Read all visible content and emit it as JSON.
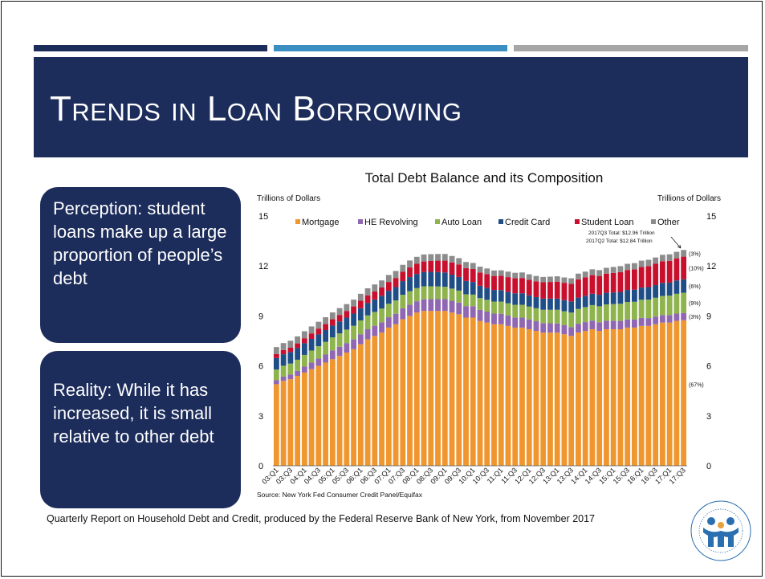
{
  "slide": {
    "title": "Trends in Loan Borrowing",
    "perception_text": "Perception: student loans make up a large proportion of people’s debt",
    "reality_text": "Reality: While it has increased, it is small relative to other debt",
    "footer": "Quarterly Report on Household Debt and Credit, produced by the Federal Reserve Bank of New York, from November 2017"
  },
  "colors": {
    "navy": "#1c2c5b",
    "blue": "#3b8ec2",
    "gray": "#a6a6a6"
  },
  "logo_icon": "financial-aid-association-seal-icon",
  "chart_data": {
    "type": "bar",
    "stacked": true,
    "title": "Total Debt Balance and its Composition",
    "ylabel_left": "Trillions of Dollars",
    "ylabel_right": "Trillions of Dollars",
    "ylim": [
      0,
      15
    ],
    "yticks": [
      0,
      3,
      6,
      9,
      12,
      15
    ],
    "source": "Source: New York Fed Consumer Credit Panel/Equifax",
    "legend_position": "top",
    "tick_labels": [
      "03:Q1",
      "03:Q3",
      "04:Q1",
      "04:Q3",
      "05:Q1",
      "05:Q3",
      "06:Q1",
      "06:Q3",
      "07:Q1",
      "07:Q3",
      "08:Q1",
      "08:Q3",
      "09:Q1",
      "09:Q3",
      "10:Q1",
      "10:Q3",
      "11:Q1",
      "11:Q3",
      "12:Q1",
      "12:Q3",
      "13:Q1",
      "13:Q3",
      "14:Q1",
      "14:Q3",
      "15:Q1",
      "15:Q3",
      "16:Q1",
      "16:Q3",
      "17:Q1",
      "17:Q3"
    ],
    "categories": [
      "03:Q1",
      "03:Q2",
      "03:Q3",
      "03:Q4",
      "04:Q1",
      "04:Q2",
      "04:Q3",
      "04:Q4",
      "05:Q1",
      "05:Q2",
      "05:Q3",
      "05:Q4",
      "06:Q1",
      "06:Q2",
      "06:Q3",
      "06:Q4",
      "07:Q1",
      "07:Q2",
      "07:Q3",
      "07:Q4",
      "08:Q1",
      "08:Q2",
      "08:Q3",
      "08:Q4",
      "09:Q1",
      "09:Q2",
      "09:Q3",
      "09:Q4",
      "10:Q1",
      "10:Q2",
      "10:Q3",
      "10:Q4",
      "11:Q1",
      "11:Q2",
      "11:Q3",
      "11:Q4",
      "12:Q1",
      "12:Q2",
      "12:Q3",
      "12:Q4",
      "13:Q1",
      "13:Q2",
      "13:Q3",
      "13:Q4",
      "14:Q1",
      "14:Q2",
      "14:Q3",
      "14:Q4",
      "15:Q1",
      "15:Q2",
      "15:Q3",
      "15:Q4",
      "16:Q1",
      "16:Q2",
      "16:Q3",
      "16:Q4",
      "17:Q1",
      "17:Q2",
      "17:Q3"
    ],
    "series": [
      {
        "name": "Mortgage",
        "color": "#f0962e",
        "values": [
          4.9,
          5.1,
          5.2,
          5.4,
          5.6,
          5.8,
          6.0,
          6.2,
          6.4,
          6.6,
          6.8,
          7.0,
          7.3,
          7.6,
          7.8,
          8.0,
          8.3,
          8.5,
          8.8,
          9.0,
          9.2,
          9.3,
          9.3,
          9.3,
          9.3,
          9.2,
          9.1,
          8.9,
          8.9,
          8.7,
          8.6,
          8.5,
          8.5,
          8.4,
          8.3,
          8.3,
          8.2,
          8.1,
          8.0,
          8.0,
          8.0,
          7.9,
          7.8,
          8.0,
          8.1,
          8.2,
          8.1,
          8.2,
          8.2,
          8.2,
          8.3,
          8.3,
          8.4,
          8.4,
          8.5,
          8.6,
          8.6,
          8.7,
          8.74
        ]
      },
      {
        "name": "HE Revolving",
        "color": "#8f67b2",
        "values": [
          0.24,
          0.26,
          0.28,
          0.3,
          0.36,
          0.4,
          0.44,
          0.48,
          0.53,
          0.55,
          0.57,
          0.59,
          0.6,
          0.6,
          0.61,
          0.62,
          0.62,
          0.63,
          0.66,
          0.68,
          0.68,
          0.7,
          0.71,
          0.71,
          0.71,
          0.71,
          0.7,
          0.69,
          0.68,
          0.67,
          0.66,
          0.64,
          0.63,
          0.62,
          0.61,
          0.6,
          0.59,
          0.58,
          0.57,
          0.56,
          0.55,
          0.54,
          0.53,
          0.53,
          0.53,
          0.52,
          0.52,
          0.51,
          0.51,
          0.5,
          0.49,
          0.48,
          0.48,
          0.47,
          0.46,
          0.45,
          0.45,
          0.44,
          0.44
        ]
      },
      {
        "name": "Auto Loan",
        "color": "#8fb44e",
        "values": [
          0.64,
          0.65,
          0.66,
          0.67,
          0.7,
          0.72,
          0.74,
          0.76,
          0.78,
          0.8,
          0.81,
          0.82,
          0.83,
          0.83,
          0.83,
          0.82,
          0.81,
          0.8,
          0.81,
          0.81,
          0.79,
          0.78,
          0.77,
          0.76,
          0.74,
          0.73,
          0.72,
          0.71,
          0.7,
          0.7,
          0.71,
          0.72,
          0.73,
          0.74,
          0.76,
          0.77,
          0.77,
          0.78,
          0.8,
          0.81,
          0.82,
          0.84,
          0.87,
          0.89,
          0.9,
          0.93,
          0.96,
          0.98,
          1.0,
          1.03,
          1.05,
          1.07,
          1.09,
          1.11,
          1.13,
          1.15,
          1.17,
          1.19,
          1.21
        ]
      },
      {
        "name": "Credit Card",
        "color": "#1f4e87",
        "values": [
          0.69,
          0.69,
          0.69,
          0.7,
          0.7,
          0.7,
          0.71,
          0.71,
          0.71,
          0.72,
          0.72,
          0.73,
          0.73,
          0.74,
          0.75,
          0.77,
          0.78,
          0.8,
          0.82,
          0.84,
          0.85,
          0.86,
          0.87,
          0.87,
          0.86,
          0.84,
          0.82,
          0.8,
          0.76,
          0.74,
          0.72,
          0.7,
          0.69,
          0.69,
          0.69,
          0.69,
          0.68,
          0.67,
          0.67,
          0.67,
          0.67,
          0.67,
          0.67,
          0.68,
          0.68,
          0.68,
          0.69,
          0.7,
          0.7,
          0.71,
          0.72,
          0.73,
          0.73,
          0.75,
          0.76,
          0.78,
          0.78,
          0.8,
          0.81
        ]
      },
      {
        "name": "Student Loan",
        "color": "#c8102e",
        "values": [
          0.24,
          0.25,
          0.26,
          0.28,
          0.3,
          0.33,
          0.35,
          0.36,
          0.38,
          0.39,
          0.4,
          0.43,
          0.45,
          0.47,
          0.48,
          0.5,
          0.53,
          0.55,
          0.56,
          0.58,
          0.61,
          0.63,
          0.65,
          0.68,
          0.71,
          0.73,
          0.75,
          0.77,
          0.78,
          0.8,
          0.82,
          0.84,
          0.86,
          0.88,
          0.9,
          0.92,
          0.93,
          0.95,
          0.98,
          1.0,
          1.02,
          1.04,
          1.06,
          1.1,
          1.11,
          1.12,
          1.13,
          1.15,
          1.17,
          1.19,
          1.2,
          1.22,
          1.24,
          1.26,
          1.28,
          1.3,
          1.31,
          1.33,
          1.36
        ]
      },
      {
        "name": "Other",
        "color": "#8c8c8c",
        "values": [
          0.42,
          0.42,
          0.42,
          0.42,
          0.42,
          0.42,
          0.41,
          0.41,
          0.41,
          0.41,
          0.41,
          0.41,
          0.42,
          0.42,
          0.42,
          0.42,
          0.42,
          0.42,
          0.42,
          0.42,
          0.42,
          0.42,
          0.41,
          0.4,
          0.4,
          0.39,
          0.38,
          0.37,
          0.36,
          0.35,
          0.34,
          0.33,
          0.33,
          0.33,
          0.33,
          0.33,
          0.33,
          0.32,
          0.32,
          0.32,
          0.32,
          0.32,
          0.33,
          0.34,
          0.34,
          0.35,
          0.35,
          0.35,
          0.36,
          0.36,
          0.37,
          0.37,
          0.38,
          0.38,
          0.38,
          0.39,
          0.39,
          0.39,
          0.4
        ]
      }
    ],
    "composition_labels": {
      "Other": "(3%)",
      "Student Loan": "(10%)",
      "Credit Card": "(6%)",
      "Auto Loan": "(9%)",
      "HE Revolving": "(3%)",
      "Mortgage": "(67%)"
    },
    "annotations": [
      "2017Q3 Total: $12.96 Trillion",
      "2017Q2 Total: $12.84 Trillion"
    ]
  }
}
